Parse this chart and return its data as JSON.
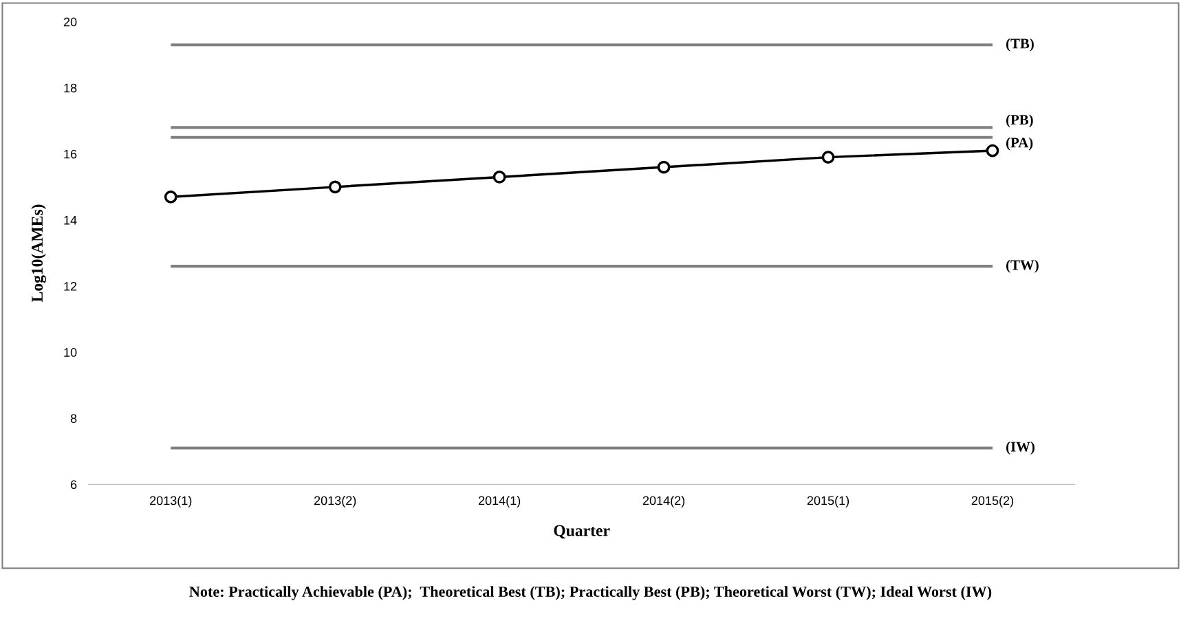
{
  "chart_data": {
    "type": "line",
    "xlabel": "Quarter",
    "ylabel": "Log10(AMEs)",
    "categories": [
      "2013(1)",
      "2013(2)",
      "2014(1)",
      "2014(2)",
      "2015(1)",
      "2015(2)"
    ],
    "series": [
      {
        "color": "#000000",
        "values": [
          14.7,
          15.0,
          15.3,
          15.6,
          15.9,
          16.1
        ]
      }
    ],
    "marker": "circle",
    "line_style": "solid",
    "grid": false,
    "legend": false,
    "ylim": [
      6,
      20
    ],
    "yticks": [
      6,
      8,
      10,
      12,
      14,
      16,
      18,
      20
    ],
    "ref_lines": [
      {
        "axis": "y",
        "value": 19.3,
        "label": "(TB)",
        "color": "#808080"
      },
      {
        "axis": "y",
        "value": 16.8,
        "label": "(PB)",
        "color": "#808080"
      },
      {
        "axis": "y",
        "value": 16.5,
        "label": "(PA)",
        "color": "#808080"
      },
      {
        "axis": "y",
        "value": 12.6,
        "label": "(TW)",
        "color": "#808080"
      },
      {
        "axis": "y",
        "value": 7.1,
        "label": "(IW)",
        "color": "#808080"
      }
    ],
    "annotations": [
      "Note: Practically Achievable (PA);  Theoretical Best (TB); Practically Best (PB); Theoretical Worst (TW); Ideal Worst (IW)"
    ]
  }
}
